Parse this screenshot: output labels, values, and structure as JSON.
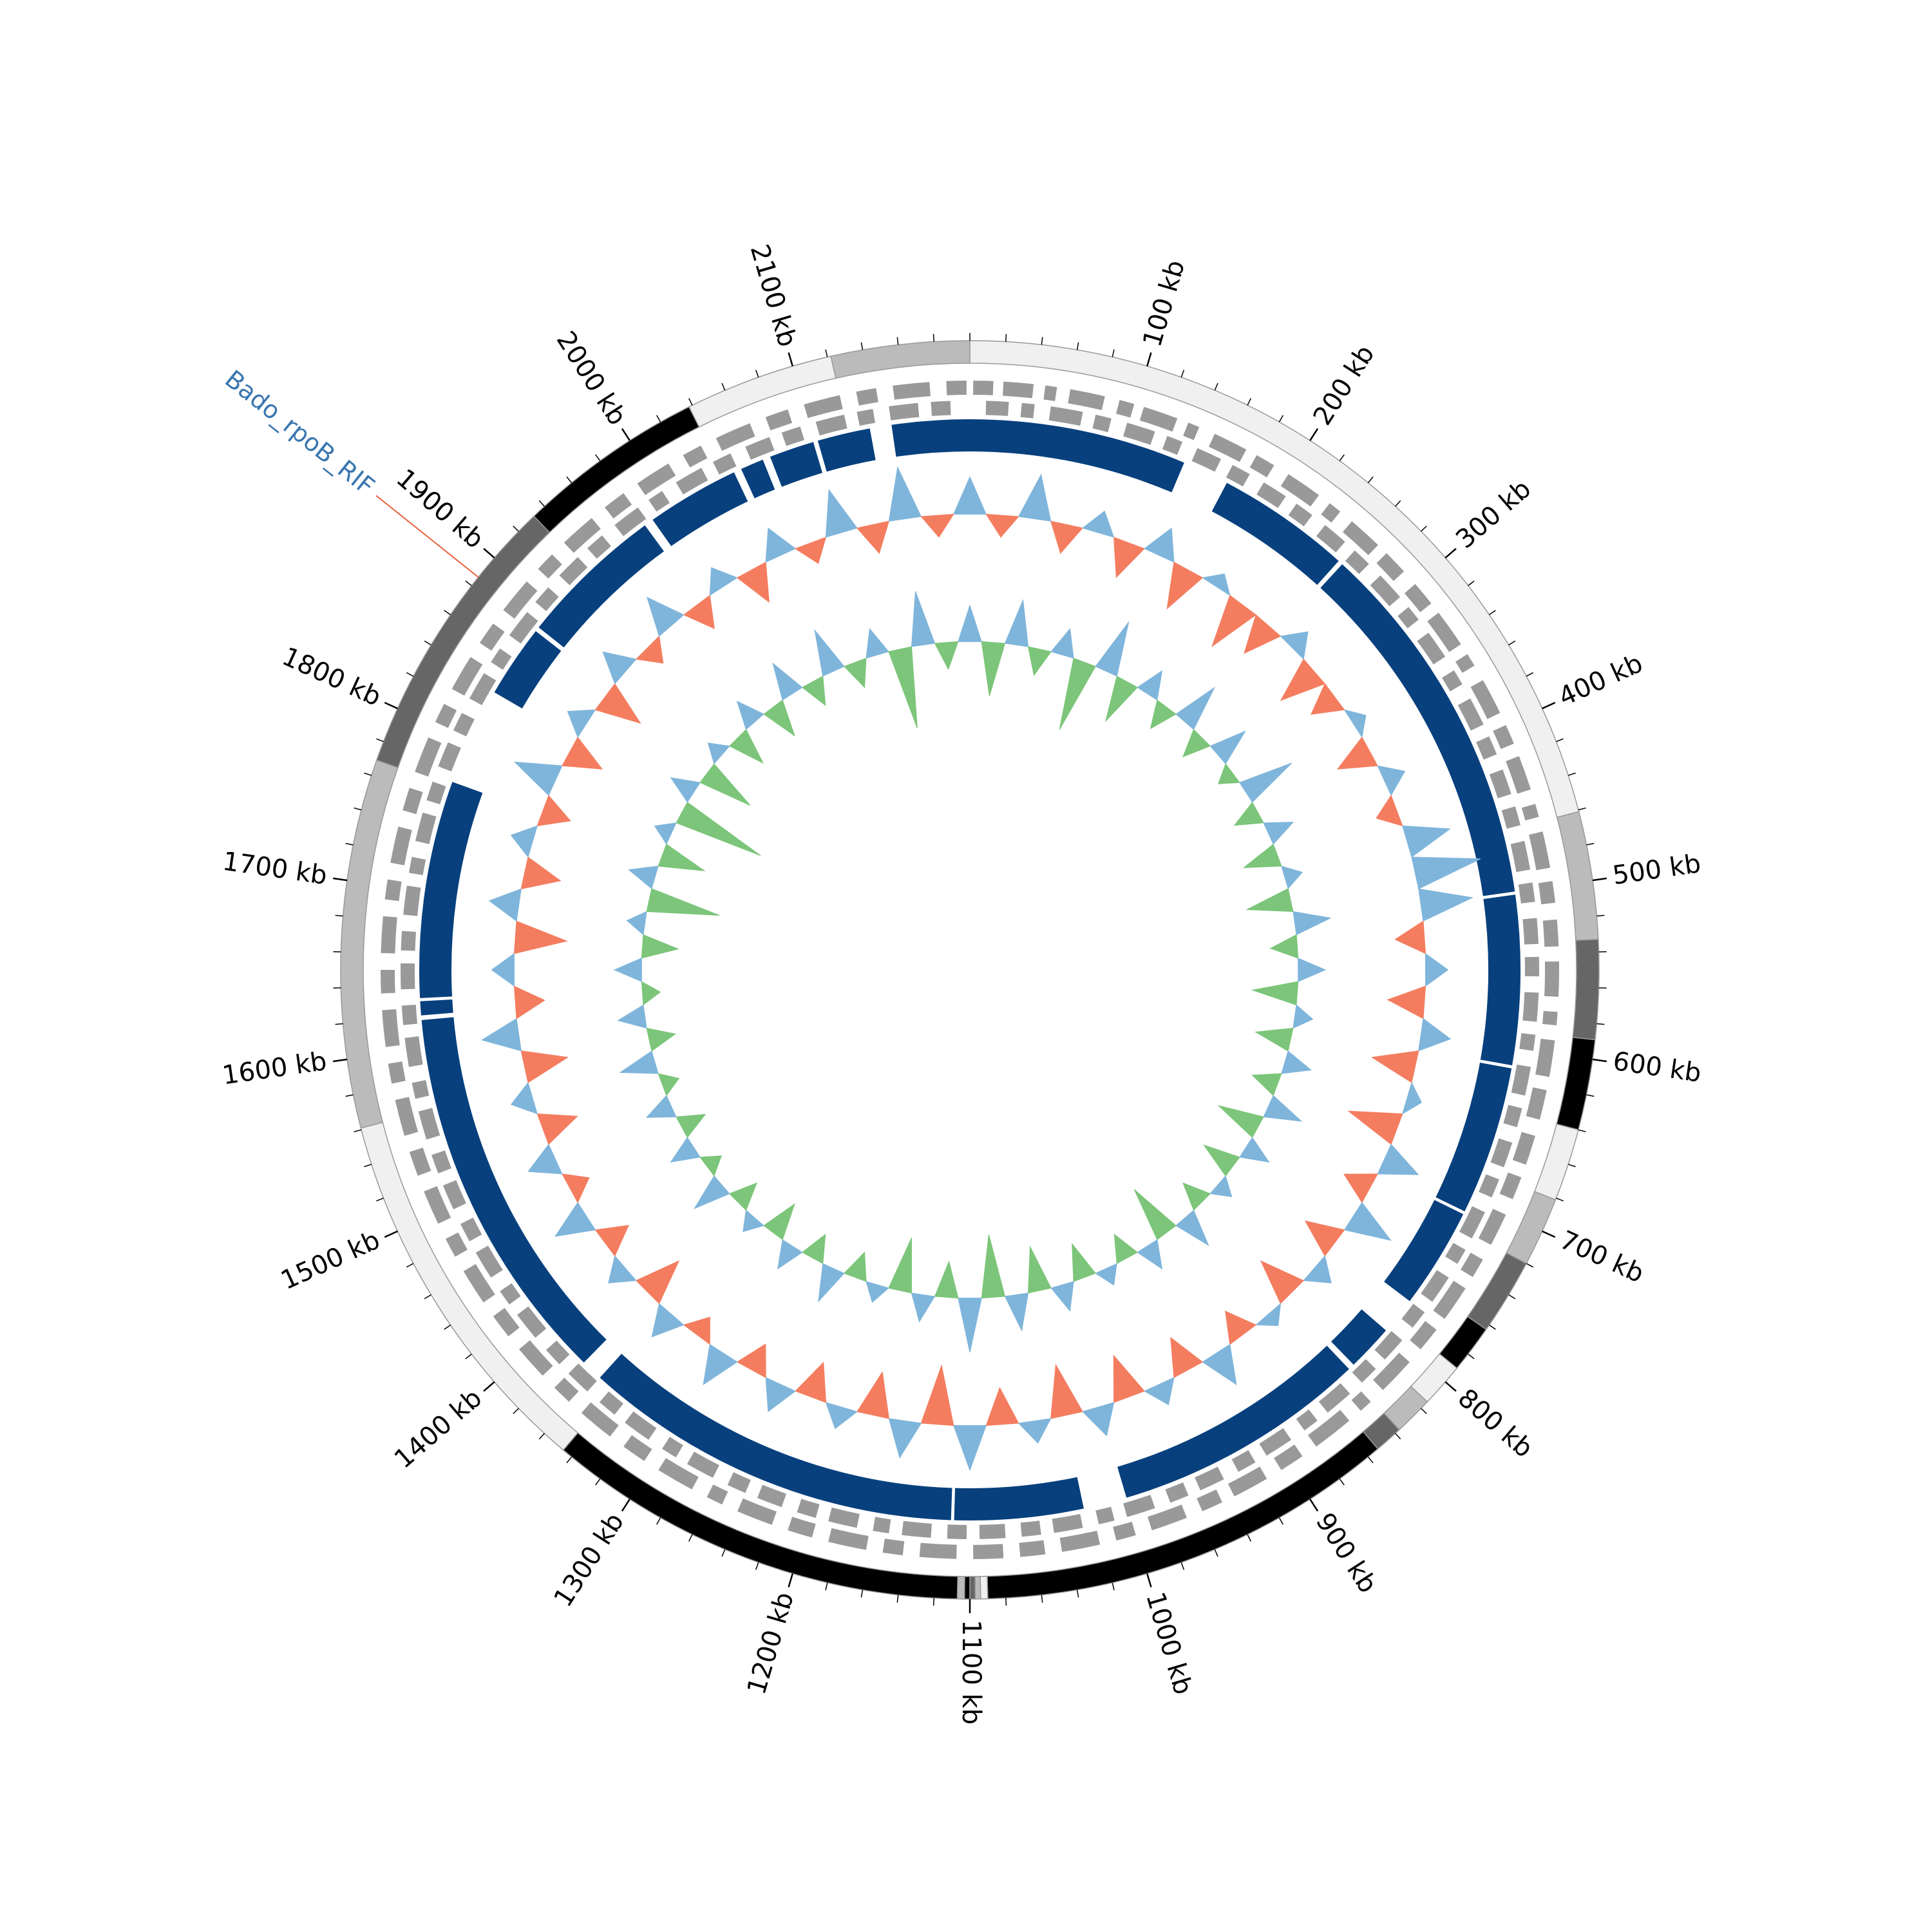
{
  "chart_data": {
    "type": "circos",
    "xlim": [
      0,
      2200
    ],
    "xticks": [
      {
        "value": 100,
        "label": "100 kb"
      },
      {
        "value": 200,
        "label": "200 kb"
      },
      {
        "value": 300,
        "label": "300 kb"
      },
      {
        "value": 400,
        "label": "400 kb"
      },
      {
        "value": 500,
        "label": "500 kb"
      },
      {
        "value": 600,
        "label": "600 kb"
      },
      {
        "value": 700,
        "label": "700 kb"
      },
      {
        "value": 800,
        "label": "800 kb"
      },
      {
        "value": 900,
        "label": "900 kb"
      },
      {
        "value": 1000,
        "label": "1000 kb"
      },
      {
        "value": 1100,
        "label": "1100 kb"
      },
      {
        "value": 1200,
        "label": "1200 kb"
      },
      {
        "value": 1300,
        "label": "1300 kb"
      },
      {
        "value": 1400,
        "label": "1400 kb"
      },
      {
        "value": 1500,
        "label": "1500 kb"
      },
      {
        "value": 1600,
        "label": "1600 kb"
      },
      {
        "value": 1700,
        "label": "1700 kb"
      },
      {
        "value": 1800,
        "label": "1800 kb"
      },
      {
        "value": 1900,
        "label": "1900 kb"
      },
      {
        "value": 2000,
        "label": "2000 kb"
      },
      {
        "value": 2100,
        "label": "2100 kb"
      }
    ],
    "minor_xticks": [
      0,
      20,
      40,
      60,
      80,
      100,
      120,
      140,
      160,
      180,
      200,
      220,
      240,
      260,
      280,
      300,
      320,
      340,
      360,
      380,
      400,
      420,
      440,
      460,
      480,
      500,
      520,
      540,
      560,
      580,
      600,
      620,
      640,
      660,
      680,
      700,
      720,
      740,
      760,
      780,
      800,
      820,
      840,
      860,
      880,
      900,
      920,
      940,
      960,
      980,
      1000,
      1020,
      1040,
      1060,
      1080,
      1100,
      1120,
      1140,
      1160,
      1180,
      1200,
      1220,
      1240,
      1260,
      1280,
      1300,
      1320,
      1340,
      1360,
      1380,
      1400,
      1420,
      1440,
      1460,
      1480,
      1500,
      1520,
      1540,
      1560,
      1580,
      1600,
      1620,
      1640,
      1660,
      1680,
      1700,
      1720,
      1740,
      1760,
      1780,
      1800,
      1820,
      1840,
      1860,
      1880,
      1900,
      1920,
      1940,
      1960,
      1980,
      2000,
      2020,
      2040,
      2060,
      2080,
      2100,
      2120,
      2140,
      2160,
      2180
    ],
    "contigs": [
      {
        "start": 0,
        "end": 461,
        "color": "#f0f0f0"
      },
      {
        "start": 461,
        "end": 533,
        "color": "#bbbbbb"
      },
      {
        "start": 533,
        "end": 589,
        "color": "#666666"
      },
      {
        "start": 589,
        "end": 640,
        "color": "#000000"
      },
      {
        "start": 640,
        "end": 681,
        "color": "#f0f0f0"
      },
      {
        "start": 681,
        "end": 720,
        "color": "#bbbbbb"
      },
      {
        "start": 720,
        "end": 763,
        "color": "#666666"
      },
      {
        "start": 763,
        "end": 790,
        "color": "#000000"
      },
      {
        "start": 790,
        "end": 815,
        "color": "#f0f0f0"
      },
      {
        "start": 815,
        "end": 837,
        "color": "#bbbbbb"
      },
      {
        "start": 837,
        "end": 853,
        "color": "#666666"
      },
      {
        "start": 853,
        "end": 1090,
        "color": "#000000"
      },
      {
        "start": 1090,
        "end": 1094,
        "color": "#f0f0f0"
      },
      {
        "start": 1094,
        "end": 1097,
        "color": "#bbbbbb"
      },
      {
        "start": 1097,
        "end": 1100,
        "color": "#666666"
      },
      {
        "start": 1100,
        "end": 1103,
        "color": "#000000"
      },
      {
        "start": 1103,
        "end": 1107,
        "color": "#bbbbbb"
      },
      {
        "start": 1107,
        "end": 1346,
        "color": "#000000"
      },
      {
        "start": 1346,
        "end": 1561,
        "color": "#f0f0f0"
      },
      {
        "start": 1561,
        "end": 1769,
        "color": "#bbbbbb"
      },
      {
        "start": 1769,
        "end": 1932,
        "color": "#666666"
      },
      {
        "start": 1932,
        "end": 2038,
        "color": "#000000"
      },
      {
        "start": 2038,
        "end": 2122,
        "color": "#f0f0f0"
      },
      {
        "start": 2122,
        "end": 2200,
        "color": "#bbbbbb"
      }
    ],
    "genes": {
      "color": "#999999",
      "forward": [
        [
          2,
          14
        ],
        [
          20,
          38
        ],
        [
          45,
          52
        ],
        [
          60,
          81
        ],
        [
          90,
          99
        ],
        [
          105,
          126
        ],
        [
          133,
          140
        ],
        [
          150,
          171
        ],
        [
          178,
          190
        ],
        [
          200,
          222
        ],
        [
          230,
          238
        ],
        [
          247,
          268
        ],
        [
          275,
          290
        ],
        [
          300,
          315
        ],
        [
          322,
          345
        ],
        [
          352,
          360
        ],
        [
          370,
          392
        ],
        [
          400,
          412
        ],
        [
          420,
          441
        ],
        [
          450,
          458
        ],
        [
          467,
          489
        ],
        [
          497,
          510
        ],
        [
          520,
          536
        ],
        [
          545,
          566
        ],
        [
          575,
          583
        ],
        [
          592,
          614
        ],
        [
          622,
          640
        ],
        [
          650,
          668
        ],
        [
          676,
          690
        ],
        [
          700,
          720
        ],
        [
          730,
          742
        ],
        [
          750,
          772
        ],
        [
          780,
          795
        ],
        [
          805,
          828
        ],
        [
          838,
          846
        ],
        [
          855,
          880
        ],
        [
          890,
          905
        ],
        [
          915,
          937
        ],
        [
          945,
          958
        ],
        [
          968,
          990
        ],
        [
          1000,
          1012
        ],
        [
          1022,
          1045
        ],
        [
          1055,
          1070
        ],
        [
          1080,
          1098
        ],
        [
          1108,
          1130
        ],
        [
          1140,
          1152
        ],
        [
          1162,
          1185
        ],
        [
          1195,
          1210
        ],
        [
          1220,
          1242
        ],
        [
          1252,
          1262
        ],
        [
          1272,
          1295
        ],
        [
          1305,
          1320
        ],
        [
          1330,
          1352
        ],
        [
          1362,
          1374
        ],
        [
          1384,
          1405
        ],
        [
          1415,
          1430
        ],
        [
          1440,
          1462
        ],
        [
          1472,
          1484
        ],
        [
          1494,
          1515
        ],
        [
          1525,
          1540
        ],
        [
          1550,
          1572
        ],
        [
          1582,
          1594
        ],
        [
          1604,
          1626
        ],
        [
          1636,
          1650
        ],
        [
          1660,
          1682
        ],
        [
          1692,
          1704
        ],
        [
          1714,
          1736
        ],
        [
          1746,
          1760
        ],
        [
          1770,
          1792
        ],
        [
          1802,
          1814
        ],
        [
          1824,
          1846
        ],
        [
          1856,
          1870
        ],
        [
          1880,
          1902
        ],
        [
          1912,
          1924
        ],
        [
          1934,
          1956
        ],
        [
          1966,
          1980
        ],
        [
          1990,
          2012
        ],
        [
          2022,
          2034
        ],
        [
          2044,
          2066
        ],
        [
          2076,
          2090
        ],
        [
          2100,
          2122
        ],
        [
          2132,
          2144
        ],
        [
          2154,
          2176
        ],
        [
          2186,
          2198
        ]
      ],
      "reverse": [
        [
          10,
          24
        ],
        [
          32,
          40
        ],
        [
          50,
          70
        ],
        [
          78,
          88
        ],
        [
          98,
          116
        ],
        [
          124,
          134
        ],
        [
          144,
          160
        ],
        [
          168,
          180
        ],
        [
          190,
          206
        ],
        [
          214,
          226
        ],
        [
          236,
          252
        ],
        [
          260,
          272
        ],
        [
          282,
          300
        ],
        [
          308,
          318
        ],
        [
          328,
          346
        ],
        [
          356,
          366
        ],
        [
          376,
          394
        ],
        [
          402,
          414
        ],
        [
          424,
          440
        ],
        [
          448,
          460
        ],
        [
          470,
          488
        ],
        [
          496,
          508
        ],
        [
          518,
          534
        ],
        [
          542,
          554
        ],
        [
          564,
          582
        ],
        [
          590,
          600
        ],
        [
          610,
          628
        ],
        [
          636,
          648
        ],
        [
          658,
          674
        ],
        [
          682,
          694
        ],
        [
          704,
          722
        ],
        [
          730,
          740
        ],
        [
          750,
          768
        ],
        [
          776,
          788
        ],
        [
          798,
          814
        ],
        [
          822,
          834
        ],
        [
          844,
          862
        ],
        [
          870,
          880
        ],
        [
          890,
          908
        ],
        [
          916,
          928
        ],
        [
          938,
          954
        ],
        [
          962,
          974
        ],
        [
          984,
          1002
        ],
        [
          1010,
          1020
        ],
        [
          1030,
          1048
        ],
        [
          1056,
          1068
        ],
        [
          1078,
          1094
        ],
        [
          1102,
          1114
        ],
        [
          1124,
          1142
        ],
        [
          1150,
          1160
        ],
        [
          1170,
          1188
        ],
        [
          1196,
          1208
        ],
        [
          1218,
          1234
        ],
        [
          1242,
          1254
        ],
        [
          1264,
          1282
        ],
        [
          1290,
          1300
        ],
        [
          1310,
          1328
        ],
        [
          1336,
          1348
        ],
        [
          1358,
          1374
        ],
        [
          1382,
          1394
        ],
        [
          1404,
          1422
        ],
        [
          1430,
          1440
        ],
        [
          1450,
          1468
        ],
        [
          1476,
          1488
        ],
        [
          1498,
          1514
        ],
        [
          1522,
          1534
        ],
        [
          1544,
          1562
        ],
        [
          1570,
          1580
        ],
        [
          1590,
          1608
        ],
        [
          1616,
          1628
        ],
        [
          1638,
          1654
        ],
        [
          1662,
          1674
        ],
        [
          1684,
          1702
        ],
        [
          1710,
          1720
        ],
        [
          1730,
          1748
        ],
        [
          1756,
          1768
        ],
        [
          1778,
          1794
        ],
        [
          1802,
          1814
        ],
        [
          1824,
          1842
        ],
        [
          1850,
          1860
        ],
        [
          1870,
          1888
        ],
        [
          1896,
          1908
        ],
        [
          1918,
          1934
        ],
        [
          1942,
          1954
        ],
        [
          1964,
          1982
        ],
        [
          1990,
          2000
        ],
        [
          2010,
          2028
        ],
        [
          2036,
          2048
        ],
        [
          2058,
          2074
        ],
        [
          2082,
          2094
        ],
        [
          2104,
          2122
        ],
        [
          2130,
          2140
        ],
        [
          2150,
          2168
        ],
        [
          2176,
          2188
        ]
      ]
    },
    "alignments": {
      "color": "#08407e",
      "blocks": [
        [
          2150,
          2200
        ],
        [
          0,
          140
        ],
        [
          170,
          257
        ],
        [
          260,
          500
        ],
        [
          502,
          611
        ],
        [
          613,
          709
        ],
        [
          711,
          776
        ],
        [
          800,
          830
        ],
        [
          834,
          999
        ],
        [
          1027,
          1110
        ],
        [
          1112,
          1358
        ],
        [
          1372,
          1618
        ],
        [
          1621,
          1630
        ],
        [
          1632,
          1772
        ],
        [
          1835,
          1882
        ],
        [
          1885,
          1979
        ],
        [
          1985,
          2045
        ],
        [
          2050,
          2065
        ],
        [
          2070,
          2099
        ],
        [
          2102,
          2136
        ]
      ]
    },
    "x": [
      0,
      25,
      50,
      75,
      100,
      125,
      150,
      175,
      200,
      225,
      250,
      275,
      300,
      325,
      350,
      375,
      400,
      425,
      450,
      475,
      500,
      525,
      550,
      575,
      600,
      625,
      650,
      675,
      700,
      725,
      750,
      775,
      800,
      825,
      850,
      875,
      900,
      925,
      950,
      975,
      1000,
      1025,
      1050,
      1075,
      1100,
      1125,
      1150,
      1175,
      1200,
      1225,
      1250,
      1275,
      1300,
      1325,
      1350,
      1375,
      1400,
      1425,
      1450,
      1475,
      1500,
      1525,
      1550,
      1575,
      1600,
      1625,
      1650,
      1675,
      1700,
      1725,
      1750,
      1775,
      1800,
      1825,
      1850,
      1875,
      1900,
      1925,
      1950,
      1975,
      2000,
      2025,
      2050,
      2075,
      2100,
      2125,
      2150,
      2175
    ],
    "gc_content": {
      "ylim": [
        -1,
        1
      ],
      "color_positive": "#7fb5db",
      "color_negative": "#f47d60",
      "values": [
        0.5,
        -0.3,
        0.6,
        -0.4,
        0.3,
        -0.5,
        0.4,
        -0.6,
        0.2,
        -0.7,
        -0.5,
        0.3,
        -0.6,
        -0.4,
        0.2,
        -0.5,
        0.3,
        -0.3,
        0.6,
        0.9,
        0.7,
        -0.4,
        0.3,
        -0.5,
        0.4,
        -0.6,
        0.2,
        -0.7,
        0.5,
        -0.4,
        0.6,
        -0.5,
        0.3,
        -0.6,
        0.2,
        -0.4,
        0.5,
        -0.5,
        0.3,
        -0.6,
        0.4,
        -0.7,
        0.3,
        -0.5,
        0.6,
        -0.8,
        0.5,
        -0.6,
        0.3,
        -0.5,
        0.4,
        -0.4,
        0.5,
        -0.3,
        0.4,
        -0.6,
        0.3,
        -0.4,
        0.5,
        -0.3,
        0.4,
        -0.5,
        0.3,
        -0.6,
        0.5,
        -0.4,
        0.3,
        -0.7,
        0.4,
        -0.5,
        0.3,
        -0.4,
        0.6,
        -0.5,
        0.3,
        -0.6,
        0.4,
        -0.3,
        0.5,
        -0.4,
        0.3,
        -0.5,
        0.4,
        -0.3,
        0.6,
        -0.4,
        0.7,
        -0.3
      ]
    },
    "gc_skew": {
      "ylim": [
        -1,
        1
      ],
      "color_positive": "#7fb5db",
      "color_negative": "#7cc57a",
      "values": [
        0.4,
        -0.6,
        0.5,
        -0.3,
        0.3,
        -0.8,
        0.6,
        -0.5,
        0.3,
        -0.3,
        0.5,
        -0.3,
        0.4,
        -0.2,
        0.6,
        -0.3,
        0.3,
        -0.4,
        0.2,
        -0.5,
        0.4,
        -0.3,
        0.3,
        -0.5,
        0.2,
        -0.4,
        0.3,
        -0.3,
        0.4,
        -0.5,
        0.3,
        -0.4,
        0.2,
        -0.3,
        0.4,
        -0.6,
        0.3,
        -0.3,
        0.2,
        -0.4,
        0.3,
        -0.5,
        0.4,
        -0.7,
        0.6,
        -0.4,
        0.3,
        -0.6,
        0.2,
        -0.3,
        0.4,
        -0.3,
        0.3,
        -0.4,
        0.2,
        -0.3,
        0.4,
        -0.2,
        0.3,
        -0.3,
        0.3,
        -0.2,
        0.4,
        -0.3,
        0.3,
        -0.2,
        0.3,
        -0.4,
        0.2,
        -0.8,
        0.3,
        -0.5,
        0.2,
        -1.0,
        0.3,
        -0.6,
        0.2,
        -0.4,
        0.3,
        -0.4,
        0.4,
        -0.3,
        0.5,
        -0.3,
        0.3,
        -0.9,
        0.6,
        -0.3
      ]
    },
    "annotations": [
      {
        "label": "Bado_rpoB_RIF",
        "position": 1886,
        "color": "#3a76b0",
        "line_color": "#e8603c"
      }
    ]
  }
}
